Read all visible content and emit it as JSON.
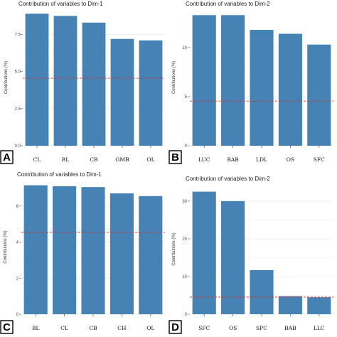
{
  "chart_data": [
    {
      "type": "bar",
      "panel_label": "A",
      "title": "Contribution of variables to Dim-1",
      "ylabel": "Contributions (%)",
      "xlabel": "",
      "categories": [
        "CL",
        "BL",
        "CB",
        "GMB",
        "OL"
      ],
      "values": [
        8.9,
        8.75,
        8.3,
        7.2,
        7.1
      ],
      "ylim": [
        0,
        9.2
      ],
      "yticks": [
        0.0,
        2.5,
        5.0,
        7.5
      ],
      "ytick_labels": [
        "0.0",
        "2.5",
        "5.0",
        "7.5"
      ],
      "reference_line": 4.55,
      "bar_color": "#4682B4",
      "reference_color": "#cc3333",
      "grid": true
    },
    {
      "type": "bar",
      "panel_label": "B",
      "title": "Contribution of variables to Dim-2",
      "ylabel": "Contributions (%)",
      "xlabel": "",
      "categories": [
        "LUC",
        "BAB",
        "LDL",
        "OS",
        "SFC"
      ],
      "values": [
        13.3,
        13.3,
        11.8,
        11.4,
        10.3
      ],
      "ylim": [
        0,
        13.9
      ],
      "yticks": [
        0,
        5,
        10
      ],
      "ytick_labels": [
        "0",
        "5",
        "10"
      ],
      "reference_line": 4.55,
      "bar_color": "#4682B4",
      "reference_color": "#cc3333",
      "grid": true
    },
    {
      "type": "bar",
      "panel_label": "C",
      "title": "Contribution of variables to Dim-1",
      "ylabel": "Contributions (%)",
      "xlabel": "",
      "categories": [
        "BL",
        "CL",
        "CB",
        "CH",
        "OL"
      ],
      "values": [
        7.15,
        7.1,
        7.05,
        6.7,
        6.55
      ],
      "ylim": [
        0,
        7.45
      ],
      "yticks": [
        0,
        2,
        4,
        6
      ],
      "ytick_labels": [
        "0",
        "2",
        "4",
        "6"
      ],
      "reference_line": 4.55,
      "bar_color": "#4682B4",
      "reference_color": "#cc3333",
      "grid": true
    },
    {
      "type": "bar",
      "panel_label": "D",
      "title": "Contribution of variables to Dim-2",
      "ylabel": "Contributions (%)",
      "xlabel": "",
      "categories": [
        "SFC",
        "OS",
        "SPC",
        "BAB",
        "LLC"
      ],
      "values": [
        32.5,
        30.0,
        11.7,
        4.8,
        4.5
      ],
      "ylim": [
        0,
        34.5
      ],
      "yticks": [
        0,
        10,
        20,
        30
      ],
      "ytick_labels": [
        "0",
        "10",
        "20",
        "30"
      ],
      "reference_line": 4.55,
      "bar_color": "#4682B4",
      "reference_color": "#cc3333",
      "grid": true
    }
  ]
}
